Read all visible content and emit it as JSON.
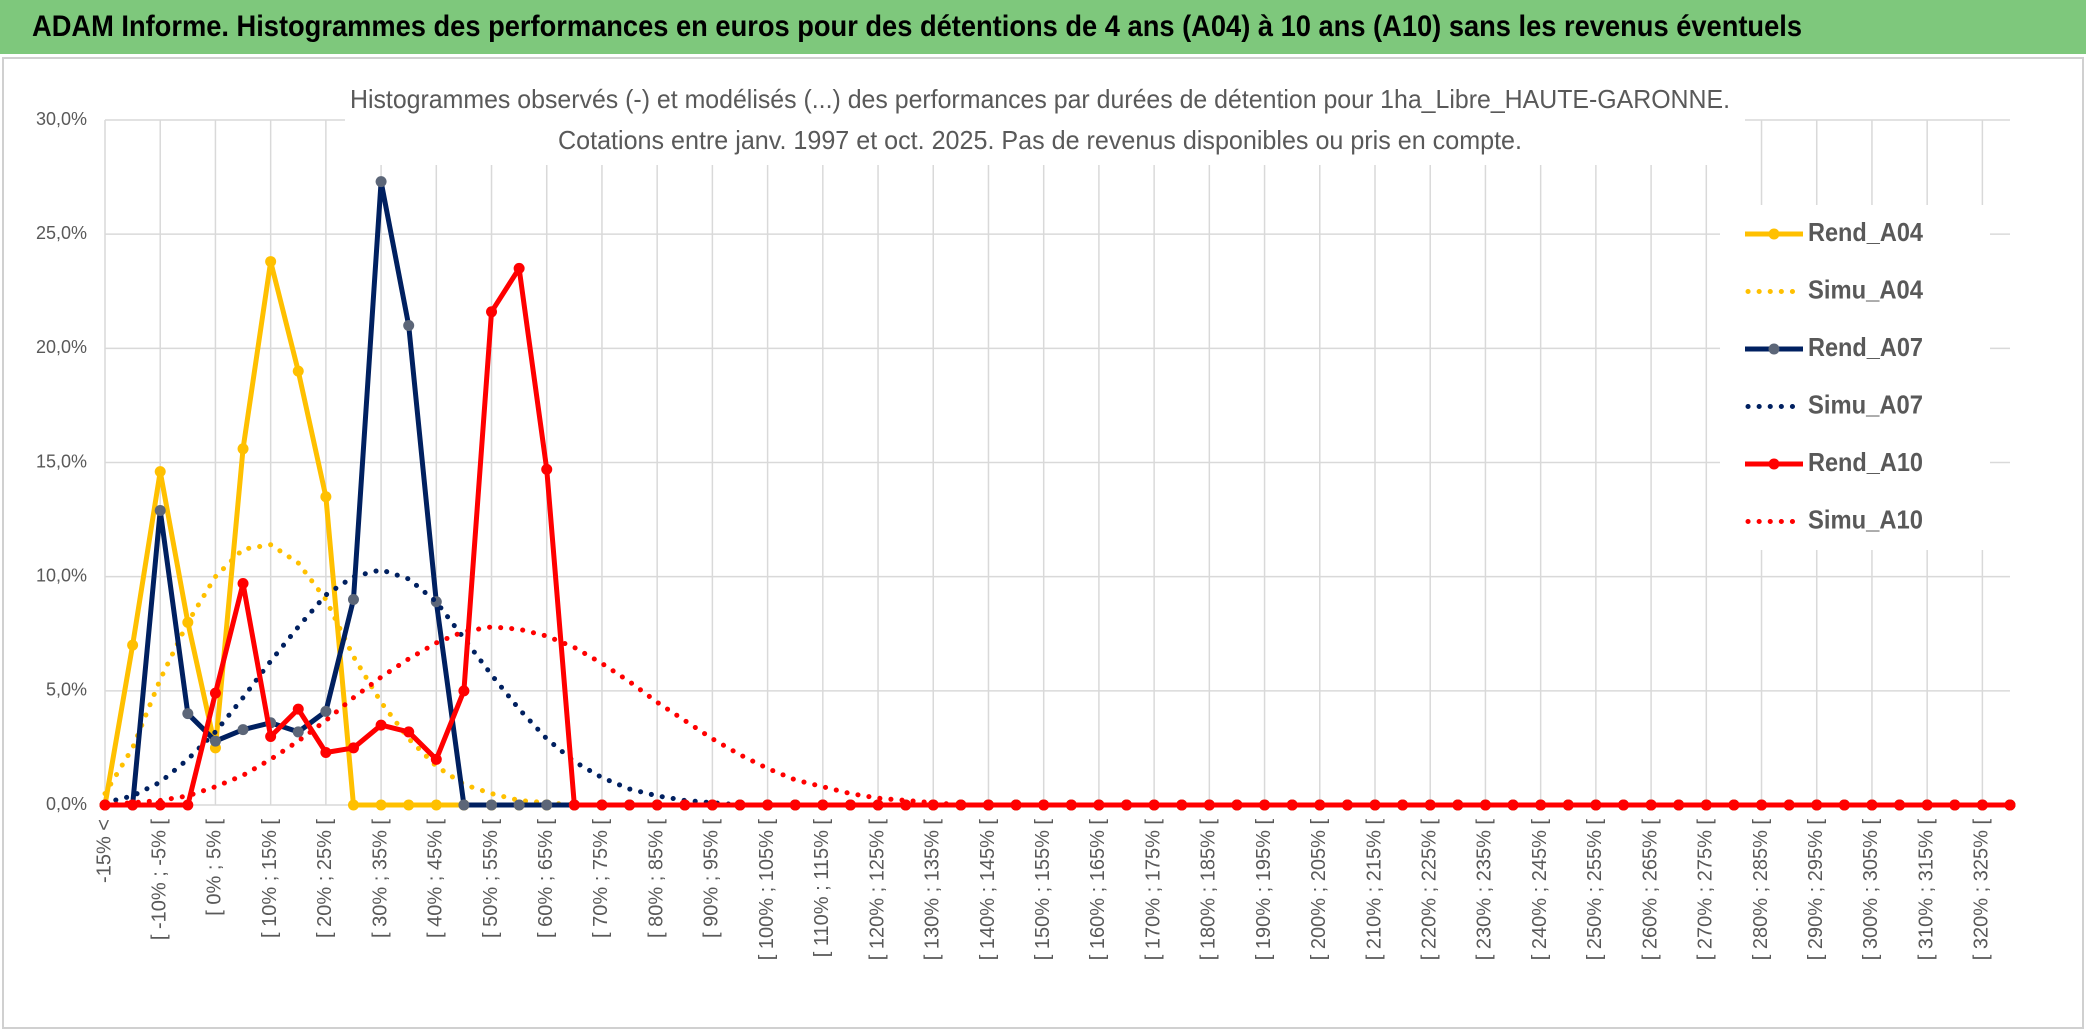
{
  "header": {
    "title": "ADAM Informe. Histogrammes des performances en euros pour des détentions de 4 ans (A04) à 10 ans (A10) sans les revenus éventuels"
  },
  "chart_data": {
    "type": "line",
    "title": [
      "Histogrammes observés (-) et modélisés (...) des performances par durées de détention pour 1ha_Libre_HAUTE-GARONNE.",
      "Cotations entre janv. 1997 et oct. 2025. Pas de revenus disponibles ou pris en compte."
    ],
    "categories": [
      "-15% <",
      null,
      "[ -10% ; -5% [",
      null,
      "[ 0% ; 5% [",
      null,
      "[ 10% ; 15% [",
      null,
      "[ 20% ; 25% [",
      null,
      "[ 30% ; 35% [",
      null,
      "[ 40% ; 45% [",
      null,
      "[ 50% ; 55% [",
      null,
      "[ 60% ; 65% [",
      null,
      "[ 70% ; 75% [",
      null,
      "[ 80% ; 85% [",
      null,
      "[ 90% ; 95% [",
      null,
      "[ 100% ; 105% [",
      null,
      "[ 110% ; 115% [",
      null,
      "[ 120% ; 125% [",
      null,
      "[ 130% ; 135% [",
      null,
      "[ 140% ; 145% [",
      null,
      "[ 150% ; 155% [",
      null,
      "[ 160% ; 165% [",
      null,
      "[ 170% ; 175% [",
      null,
      "[ 180% ; 185% [",
      null,
      "[ 190% ; 195% [",
      null,
      "[ 200% ; 205% [",
      null,
      "[ 210% ; 215% [",
      null,
      "[ 220% ; 225% [",
      null,
      "[ 230% ; 235% [",
      null,
      "[ 240% ; 245% [",
      null,
      "[ 250% ; 255% [",
      null,
      "[ 260% ; 265% [",
      null,
      "[ 270% ; 275% [",
      null,
      "[ 280% ; 285% [",
      null,
      "[ 290% ; 295% [",
      null,
      "[ 300% ; 305% [",
      null,
      "[ 310% ; 315% [",
      null,
      "[ 320% ; 325% [",
      null
    ],
    "series": [
      {
        "name": "Rend_A04",
        "color": "#ffc000",
        "style": "solid",
        "markers": true,
        "marker_color": "#ffc000",
        "values": [
          0,
          7.0,
          14.6,
          8.0,
          2.5,
          15.6,
          23.8,
          19.0,
          13.5,
          0,
          0,
          0,
          0,
          0,
          0,
          0,
          0,
          0,
          0,
          0,
          0,
          0,
          0,
          0,
          0,
          0,
          0,
          0,
          0,
          0,
          0,
          0,
          0,
          0,
          0,
          0,
          0,
          0,
          0,
          0,
          0,
          0,
          0,
          0,
          0,
          0,
          0,
          0,
          0,
          0,
          0,
          0,
          0,
          0,
          0,
          0,
          0,
          0,
          0,
          0,
          0,
          0,
          0,
          0,
          0,
          0,
          0,
          0,
          0,
          0
        ]
      },
      {
        "name": "Simu_A04",
        "color": "#ffc000",
        "style": "dotted",
        "markers": false,
        "values": [
          0.5,
          2.5,
          5.5,
          8.0,
          10.0,
          11.2,
          11.4,
          10.6,
          9.0,
          6.5,
          4.5,
          2.9,
          1.7,
          0.9,
          0.5,
          0.2,
          0.1,
          0,
          0,
          0,
          0,
          0,
          0,
          0,
          0,
          0,
          0,
          0,
          0,
          0,
          0,
          0,
          0,
          0,
          0,
          0,
          0,
          0,
          0,
          0,
          0,
          0,
          0,
          0,
          0,
          0,
          0,
          0,
          0,
          0,
          0,
          0,
          0,
          0,
          0,
          0,
          0,
          0,
          0,
          0,
          0,
          0,
          0,
          0,
          0,
          0,
          0,
          0,
          0,
          0
        ]
      },
      {
        "name": "Rend_A07",
        "color": "#002060",
        "style": "solid",
        "markers": true,
        "marker_color": "#5c6678",
        "values": [
          0,
          0,
          12.9,
          4.0,
          2.8,
          3.3,
          3.6,
          3.2,
          4.1,
          9.0,
          27.3,
          21.0,
          8.9,
          0,
          0,
          0,
          0,
          0,
          0,
          0,
          0,
          0,
          0,
          0,
          0,
          0,
          0,
          0,
          0,
          0,
          0,
          0,
          0,
          0,
          0,
          0,
          0,
          0,
          0,
          0,
          0,
          0,
          0,
          0,
          0,
          0,
          0,
          0,
          0,
          0,
          0,
          0,
          0,
          0,
          0,
          0,
          0,
          0,
          0,
          0,
          0,
          0,
          0,
          0,
          0,
          0,
          0,
          0,
          0,
          0
        ]
      },
      {
        "name": "Simu_A07",
        "color": "#002060",
        "style": "dotted",
        "markers": false,
        "values": [
          0.1,
          0.4,
          1.0,
          2.0,
          3.2,
          4.7,
          6.3,
          7.8,
          9.2,
          10.0,
          10.3,
          9.9,
          8.9,
          7.3,
          5.7,
          4.2,
          2.9,
          1.9,
          1.2,
          0.7,
          0.4,
          0.2,
          0.1,
          0,
          0,
          0,
          0,
          0,
          0,
          0,
          0,
          0,
          0,
          0,
          0,
          0,
          0,
          0,
          0,
          0,
          0,
          0,
          0,
          0,
          0,
          0,
          0,
          0,
          0,
          0,
          0,
          0,
          0,
          0,
          0,
          0,
          0,
          0,
          0,
          0,
          0,
          0,
          0,
          0,
          0,
          0,
          0,
          0,
          0,
          0
        ]
      },
      {
        "name": "Rend_A10",
        "color": "#ff0000",
        "style": "solid",
        "markers": true,
        "marker_color": "#ff0000",
        "values": [
          0,
          0,
          0,
          0,
          4.9,
          9.7,
          3.0,
          4.2,
          2.3,
          2.5,
          3.5,
          3.2,
          2.0,
          5.0,
          21.6,
          23.5,
          14.7,
          0,
          0,
          0,
          0,
          0,
          0,
          0,
          0,
          0,
          0,
          0,
          0,
          0,
          0,
          0,
          0,
          0,
          0,
          0,
          0,
          0,
          0,
          0,
          0,
          0,
          0,
          0,
          0,
          0,
          0,
          0,
          0,
          0,
          0,
          0,
          0,
          0,
          0,
          0,
          0,
          0,
          0,
          0,
          0,
          0,
          0,
          0,
          0,
          0,
          0,
          0,
          0,
          0
        ]
      },
      {
        "name": "Simu_A10",
        "color": "#ff0000",
        "style": "dotted",
        "markers": false,
        "values": [
          0,
          0.1,
          0.2,
          0.4,
          0.8,
          1.3,
          2.0,
          2.8,
          3.7,
          4.7,
          5.6,
          6.4,
          7.1,
          7.6,
          7.8,
          7.7,
          7.4,
          6.9,
          6.2,
          5.4,
          4.5,
          3.7,
          2.9,
          2.2,
          1.6,
          1.1,
          0.8,
          0.5,
          0.3,
          0.2,
          0.1,
          0,
          0,
          0,
          0,
          0,
          0,
          0,
          0,
          0,
          0,
          0,
          0,
          0,
          0,
          0,
          0,
          0,
          0,
          0,
          0,
          0,
          0,
          0,
          0,
          0,
          0,
          0,
          0,
          0,
          0,
          0,
          0,
          0,
          0,
          0,
          0,
          0,
          0,
          0
        ]
      }
    ],
    "ylim": [
      0,
      30
    ],
    "yticks": [
      {
        "value": 0,
        "label": "0,0%"
      },
      {
        "value": 5,
        "label": "5,0%"
      },
      {
        "value": 10,
        "label": "10,0%"
      },
      {
        "value": 15,
        "label": "15,0%"
      },
      {
        "value": 20,
        "label": "20,0%"
      },
      {
        "value": 25,
        "label": "25,0%"
      },
      {
        "value": 30,
        "label": "30,0%"
      }
    ],
    "grid": true,
    "legend": "right"
  }
}
